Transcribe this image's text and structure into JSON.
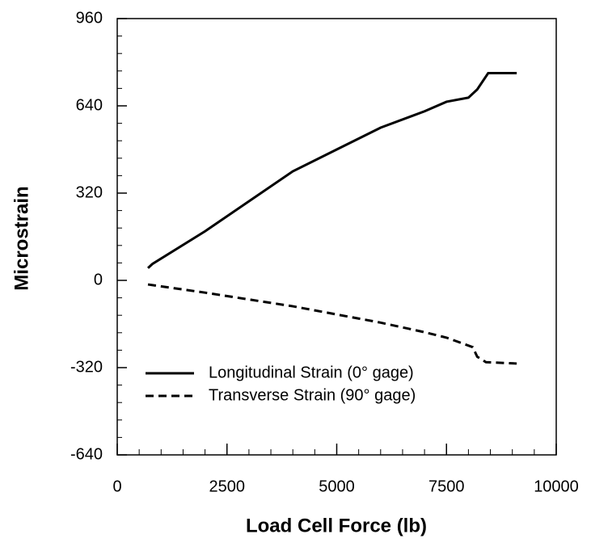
{
  "chart_data": {
    "type": "line",
    "x_label": "Load Cell Force (lb)",
    "y_label": "Microstrain",
    "xlim": [
      0,
      10000
    ],
    "xticks": [
      0,
      2500,
      5000,
      7500,
      10000
    ],
    "ylim": [
      -640,
      960
    ],
    "yticks": [
      -640,
      -320,
      0,
      320,
      640,
      960
    ],
    "legend": "lower left",
    "series": [
      {
        "name": "Longitudinal Strain (0° gage)",
        "color": "#000000",
        "dash": "solid",
        "x": [
          700,
          800,
          2000,
          3000,
          4000,
          5000,
          6000,
          7000,
          7500,
          8000,
          8200,
          8450,
          9100
        ],
        "values": [
          45,
          60,
          180,
          290,
          400,
          480,
          560,
          620,
          655,
          670,
          700,
          760,
          760
        ]
      },
      {
        "name": "Transverse Strain (90° gage)",
        "color": "#000000",
        "dash": "dashed",
        "x": [
          700,
          2000,
          3000,
          4000,
          5000,
          6000,
          7000,
          7500,
          8100,
          8200,
          8400,
          9100
        ],
        "values": [
          -15,
          -45,
          -70,
          -95,
          -125,
          -155,
          -190,
          -210,
          -245,
          -280,
          -300,
          -305
        ]
      }
    ]
  }
}
